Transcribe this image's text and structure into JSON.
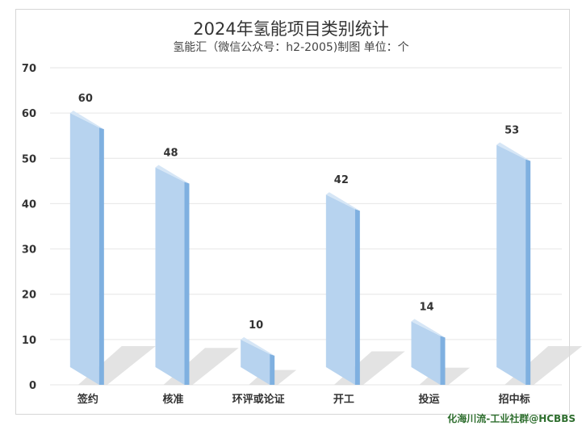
{
  "chart_data": {
    "type": "bar",
    "title": "2024年氢能项目类别统计",
    "subtitle": "氢能汇（微信公众号：h2-2005)制图   单位：个",
    "categories": [
      "签约",
      "核准",
      "环评或论证",
      "开工",
      "投运",
      "招中标"
    ],
    "values": [
      60,
      48,
      10,
      42,
      14,
      53
    ],
    "ylim": [
      0,
      70
    ],
    "yticks": [
      0,
      10,
      20,
      30,
      40,
      50,
      60,
      70
    ],
    "grid": true,
    "legend": "none",
    "colors": {
      "bar_face": "#b7d3ef",
      "bar_side": "#7fb0e0",
      "bar_top": "#d6e6f6",
      "shadow": "#d9d9d9",
      "grid": "#e6e6e6",
      "label": "#333333"
    }
  },
  "watermark": "化海川流-工业社群@HCBBS"
}
